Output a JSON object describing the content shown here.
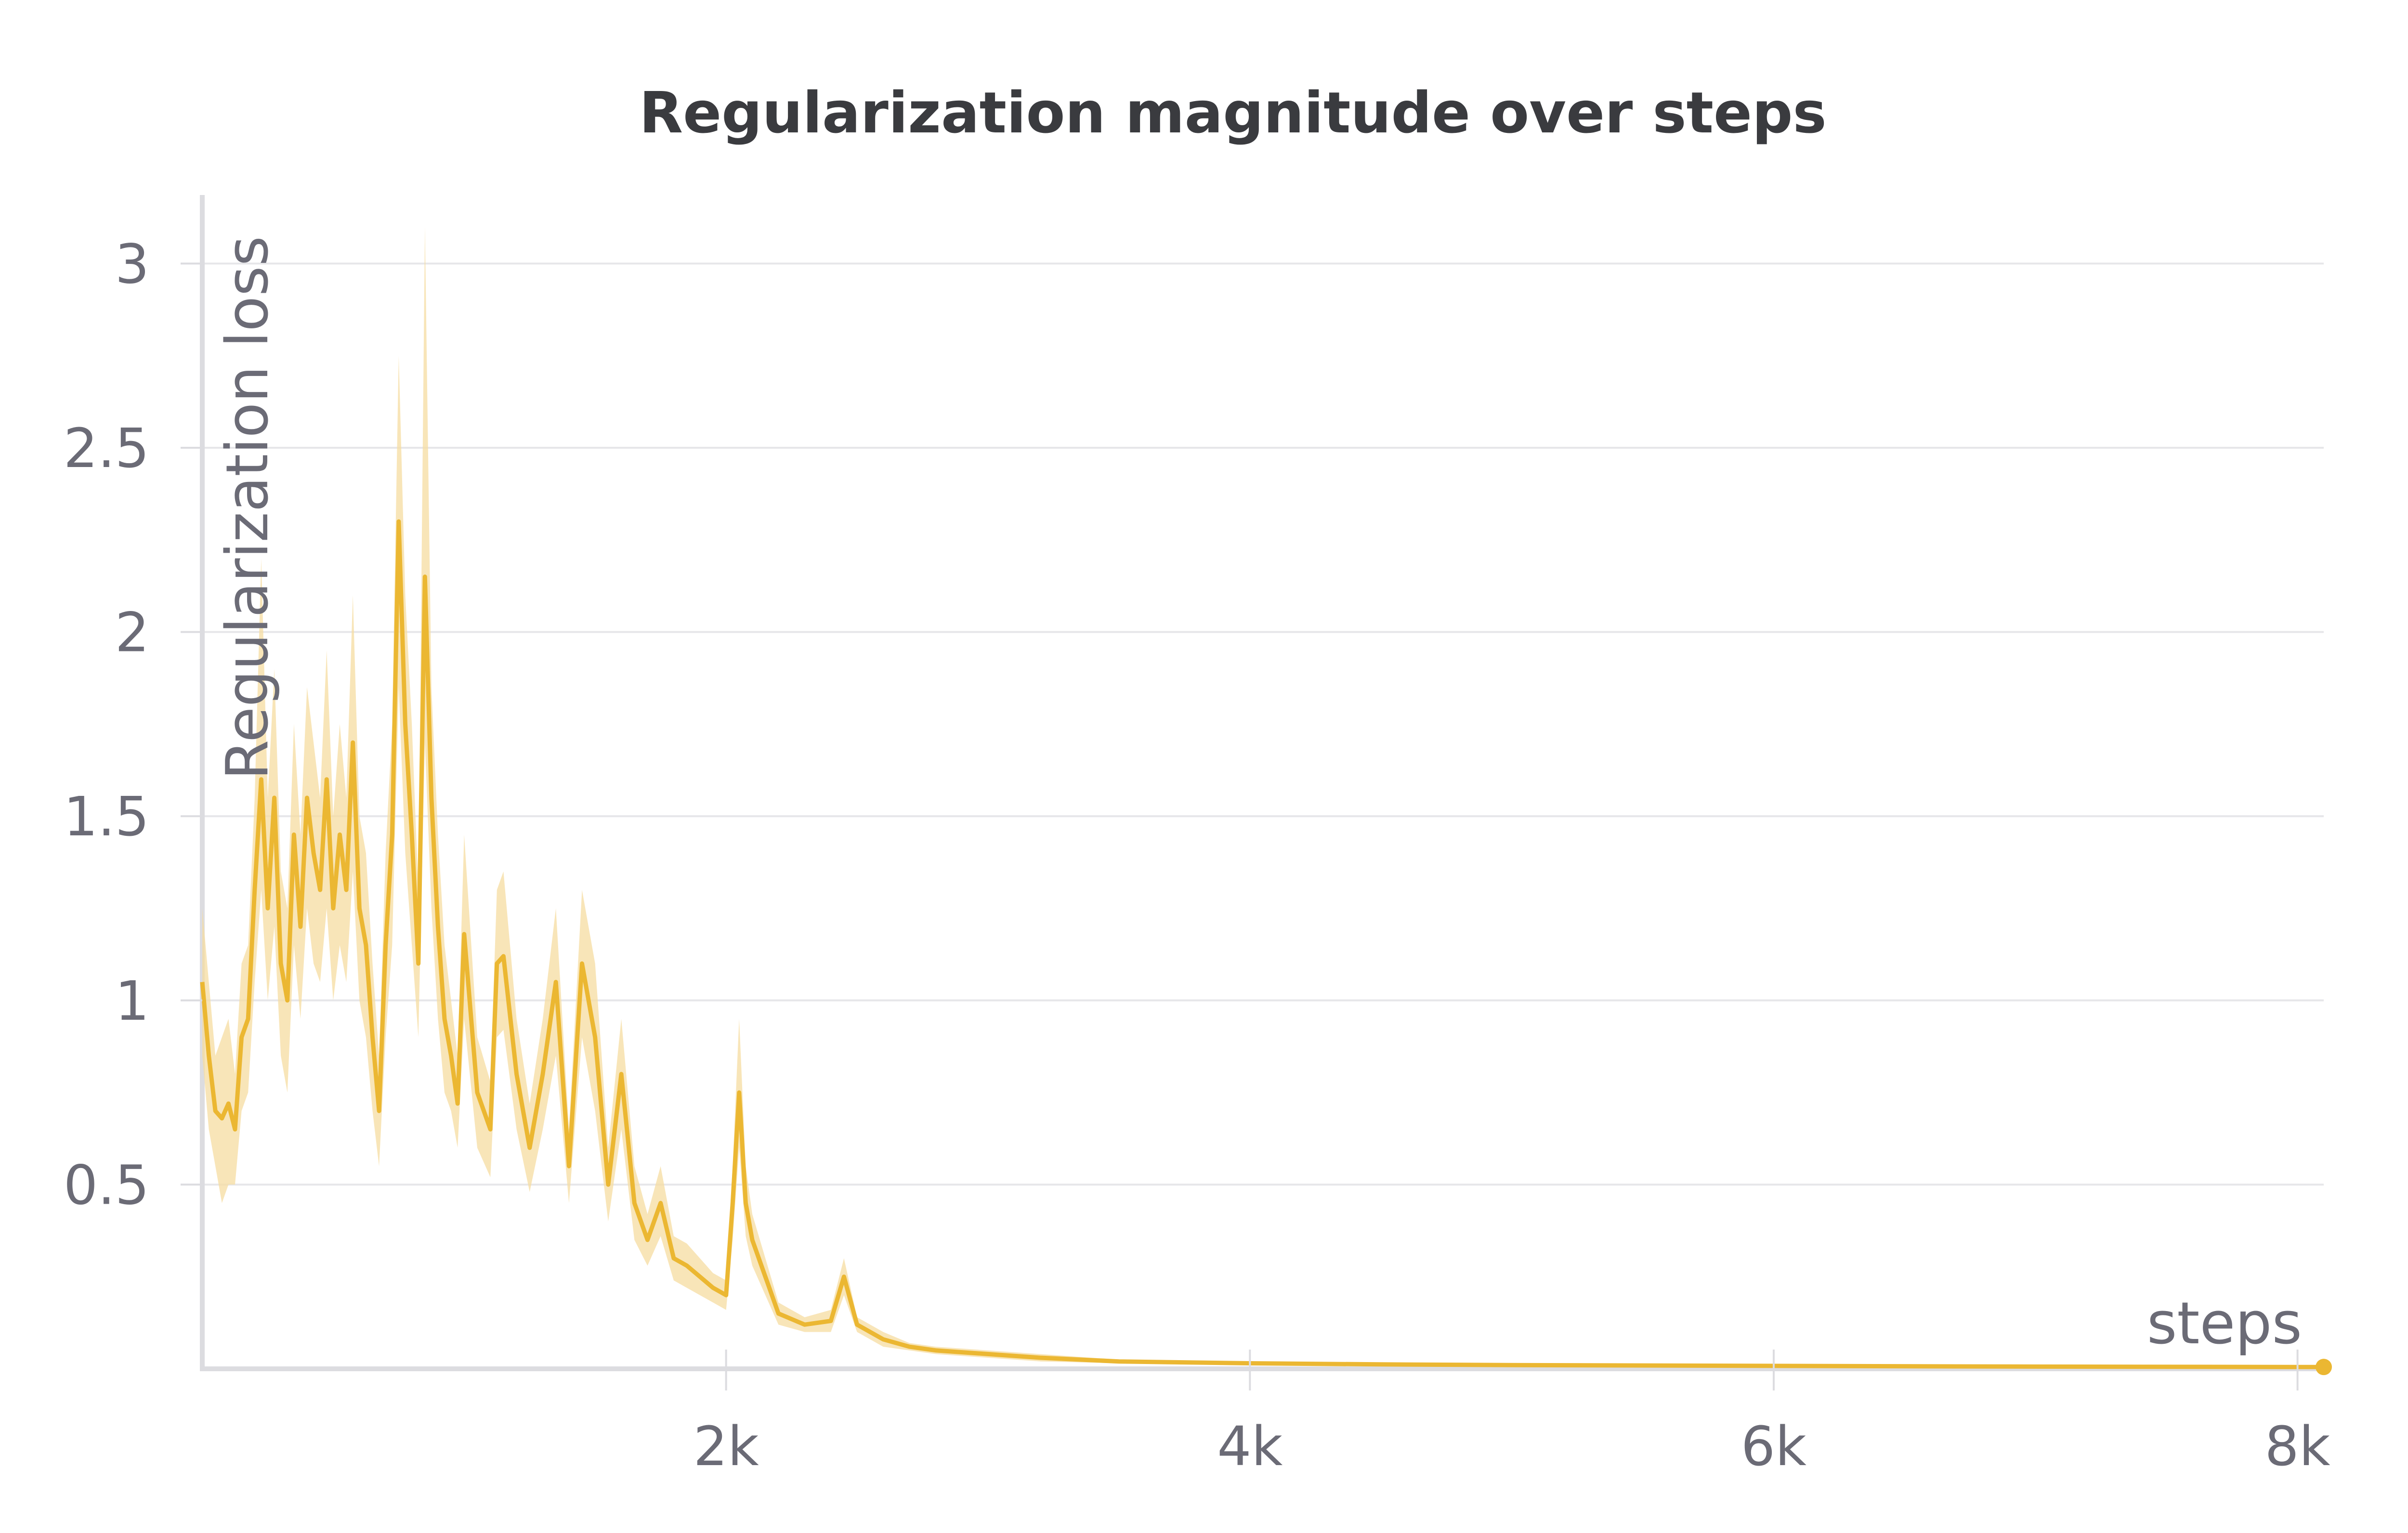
{
  "chart_data": {
    "type": "line",
    "title": "Regularization magnitude over steps",
    "xlabel": "steps",
    "ylabel": "Regularization loss",
    "xlim": [
      0,
      8100
    ],
    "ylim": [
      0,
      3.16
    ],
    "x_ticks": [
      2000,
      4000,
      6000,
      8000
    ],
    "x_tick_labels": [
      "2k",
      "4k",
      "6k",
      "8k"
    ],
    "y_ticks": [
      0.5,
      1,
      1.5,
      2,
      2.5,
      3
    ],
    "y_tick_labels": [
      "0.5",
      "1",
      "1.5",
      "2",
      "2.5",
      "3"
    ],
    "grid": true,
    "legend": "none",
    "colors": {
      "line": "#ebb732",
      "band": "#f5dca0",
      "grid": "#e6e6e9",
      "axis": "#dcdce0",
      "tick_text": "#6b6b76",
      "title_text": "#3a3b3f"
    },
    "series": [
      {
        "x": [
          0,
          25,
          50,
          75,
          100,
          125,
          150,
          175,
          200,
          225,
          250,
          275,
          300,
          325,
          350,
          375,
          400,
          425,
          450,
          475,
          500,
          525,
          550,
          575,
          600,
          625,
          650,
          675,
          700,
          725,
          750,
          775,
          800,
          825,
          850,
          875,
          900,
          925,
          950,
          975,
          1000,
          1050,
          1100,
          1125,
          1150,
          1200,
          1250,
          1300,
          1350,
          1400,
          1450,
          1500,
          1550,
          1600,
          1650,
          1700,
          1750,
          1800,
          1850,
          1900,
          1950,
          2000,
          2025,
          2050,
          2075,
          2100,
          2150,
          2200,
          2300,
          2400,
          2450,
          2500,
          2600,
          2700,
          2800,
          3000,
          3200,
          3500,
          4000,
          4500,
          5000,
          6000,
          7000,
          8000,
          8100
        ],
        "y": [
          1.05,
          0.85,
          0.7,
          0.68,
          0.72,
          0.65,
          0.9,
          0.95,
          1.3,
          1.6,
          1.25,
          1.55,
          1.1,
          1.0,
          1.45,
          1.2,
          1.55,
          1.4,
          1.3,
          1.6,
          1.25,
          1.45,
          1.3,
          1.7,
          1.25,
          1.15,
          0.9,
          0.7,
          1.15,
          1.45,
          2.3,
          1.75,
          1.45,
          1.1,
          2.15,
          1.55,
          1.2,
          0.95,
          0.85,
          0.72,
          1.18,
          0.75,
          0.65,
          1.1,
          1.12,
          0.8,
          0.6,
          0.8,
          1.05,
          0.55,
          1.1,
          0.9,
          0.5,
          0.8,
          0.45,
          0.35,
          0.45,
          0.3,
          0.28,
          0.25,
          0.22,
          0.2,
          0.45,
          0.75,
          0.45,
          0.35,
          0.25,
          0.15,
          0.12,
          0.13,
          0.25,
          0.12,
          0.08,
          0.06,
          0.05,
          0.04,
          0.03,
          0.02,
          0.015,
          0.012,
          0.01,
          0.008,
          0.006,
          0.005,
          0.005
        ],
        "y_low": [
          0.85,
          0.65,
          0.55,
          0.45,
          0.5,
          0.5,
          0.7,
          0.75,
          1.05,
          1.3,
          1.0,
          1.2,
          0.85,
          0.75,
          1.15,
          0.95,
          1.25,
          1.1,
          1.05,
          1.25,
          1.0,
          1.15,
          1.05,
          1.35,
          1.0,
          0.9,
          0.7,
          0.55,
          0.9,
          1.15,
          1.85,
          1.4,
          1.15,
          0.9,
          1.7,
          1.25,
          0.95,
          0.75,
          0.7,
          0.6,
          0.95,
          0.6,
          0.52,
          0.9,
          0.92,
          0.65,
          0.48,
          0.65,
          0.85,
          0.45,
          0.9,
          0.7,
          0.4,
          0.65,
          0.35,
          0.28,
          0.36,
          0.24,
          0.22,
          0.2,
          0.18,
          0.16,
          0.35,
          0.6,
          0.36,
          0.28,
          0.2,
          0.12,
          0.1,
          0.1,
          0.2,
          0.1,
          0.06,
          0.05,
          0.04,
          0.03,
          0.02,
          0.015,
          0.012,
          0.01,
          0.008,
          0.006,
          0.005,
          0.004,
          0.004
        ],
        "y_high": [
          1.25,
          1.05,
          0.85,
          0.9,
          0.95,
          0.8,
          1.1,
          1.15,
          1.55,
          2.2,
          1.55,
          1.9,
          1.35,
          1.25,
          1.75,
          1.45,
          1.85,
          1.7,
          1.55,
          1.95,
          1.5,
          1.75,
          1.55,
          2.1,
          1.5,
          1.4,
          1.1,
          0.85,
          1.4,
          1.75,
          2.75,
          2.1,
          1.75,
          1.3,
          3.1,
          1.85,
          1.45,
          1.15,
          1.0,
          0.85,
          1.45,
          0.9,
          0.78,
          1.3,
          1.35,
          0.95,
          0.72,
          0.95,
          1.25,
          0.65,
          1.3,
          1.1,
          0.6,
          0.95,
          0.55,
          0.42,
          0.55,
          0.36,
          0.34,
          0.3,
          0.26,
          0.24,
          0.55,
          0.95,
          0.55,
          0.42,
          0.3,
          0.18,
          0.14,
          0.16,
          0.3,
          0.14,
          0.1,
          0.07,
          0.06,
          0.05,
          0.04,
          0.025,
          0.018,
          0.014,
          0.012,
          0.01,
          0.007,
          0.006,
          0.006
        ]
      }
    ]
  }
}
